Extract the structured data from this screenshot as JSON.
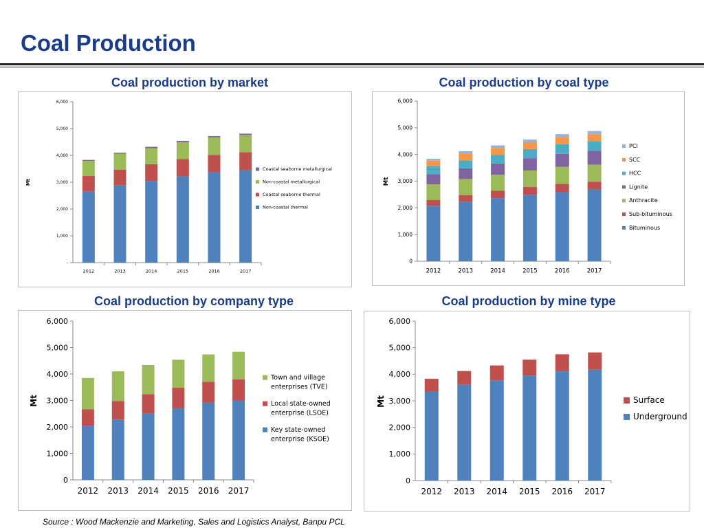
{
  "page": {
    "title": "Coal Production",
    "source": "Source : Wood Mackenzie and Marketing, Sales and Logistics Analyst, Banpu PCL"
  },
  "chart_data": [
    {
      "id": "market",
      "type": "bar",
      "stacked": true,
      "title": "Coal production by market",
      "ylabel": "Mt",
      "categories": [
        "2012",
        "2013",
        "2014",
        "2015",
        "2016",
        "2017"
      ],
      "ylim": [
        0,
        6000
      ],
      "yticks": [
        0,
        1000,
        2000,
        3000,
        4000,
        5000,
        6000
      ],
      "ytick_labels": [
        "-",
        "1,000",
        "2,000",
        "3,000",
        "4,000",
        "5,000",
        "6,000"
      ],
      "series": [
        {
          "name": "Non-coastal thermal",
          "color": "#4f81bd",
          "values": [
            2650,
            2880,
            3050,
            3220,
            3370,
            3450
          ]
        },
        {
          "name": "Coastal seaborne thermal",
          "color": "#c0504d",
          "values": [
            580,
            590,
            620,
            640,
            650,
            670
          ]
        },
        {
          "name": "Non-coastal metallurgical",
          "color": "#9bbb59",
          "values": [
            560,
            590,
            600,
            630,
            650,
            640
          ]
        },
        {
          "name": "Coastal seaborne metallurgical",
          "color": "#8064a2",
          "values": [
            40,
            40,
            50,
            50,
            50,
            50
          ]
        }
      ],
      "legend": "right"
    },
    {
      "id": "coaltype",
      "type": "bar",
      "stacked": true,
      "title": "Coal production by coal type",
      "ylabel": "Mt",
      "categories": [
        "2012",
        "2013",
        "2014",
        "2015",
        "2016",
        "2017"
      ],
      "ylim": [
        0,
        6000
      ],
      "yticks": [
        0,
        1000,
        2000,
        3000,
        4000,
        5000,
        6000
      ],
      "ytick_labels": [
        "0",
        "1,000",
        "2,000",
        "3,000",
        "4,000",
        "5,000",
        "6,000"
      ],
      "series": [
        {
          "name": "Bituminous",
          "color": "#4f81bd",
          "values": [
            2080,
            2220,
            2360,
            2480,
            2600,
            2680
          ]
        },
        {
          "name": "Sub-bituminous",
          "color": "#c0504d",
          "values": [
            220,
            260,
            280,
            300,
            300,
            300
          ]
        },
        {
          "name": "Anthracite",
          "color": "#9bbb59",
          "values": [
            580,
            600,
            600,
            620,
            640,
            640
          ]
        },
        {
          "name": "Lignite",
          "color": "#8064a2",
          "values": [
            380,
            400,
            420,
            460,
            480,
            520
          ]
        },
        {
          "name": "HCC",
          "color": "#4bacc6",
          "values": [
            300,
            300,
            320,
            340,
            360,
            360
          ]
        },
        {
          "name": "SCC",
          "color": "#f79646",
          "values": [
            220,
            240,
            260,
            260,
            260,
            260
          ]
        },
        {
          "name": "PCI",
          "color": "#95b3d7",
          "values": [
            60,
            100,
            100,
            100,
            120,
            120
          ]
        }
      ],
      "legend": "right"
    },
    {
      "id": "company",
      "type": "bar",
      "stacked": true,
      "title": "Coal production by company type",
      "ylabel": "Mt",
      "categories": [
        "2012",
        "2013",
        "2014",
        "2015",
        "2016",
        "2017"
      ],
      "ylim": [
        0,
        6000
      ],
      "yticks": [
        0,
        1000,
        2000,
        3000,
        4000,
        5000,
        6000
      ],
      "ytick_labels": [
        "0",
        "1,000",
        "2,000",
        "3,000",
        "4,000",
        "5,000",
        "6,000"
      ],
      "series": [
        {
          "name": "Key state-owned enterprise (KSOE)",
          "color": "#4f81bd",
          "values": [
            2050,
            2280,
            2500,
            2700,
            2920,
            3000
          ]
        },
        {
          "name": "Local state-owned enterprise (LSOE)",
          "color": "#c0504d",
          "values": [
            620,
            700,
            740,
            780,
            780,
            800
          ]
        },
        {
          "name": "Town and village enterprises (TVE)",
          "color": "#9bbb59",
          "values": [
            1180,
            1120,
            1100,
            1060,
            1040,
            1040
          ]
        }
      ],
      "legend": "right"
    },
    {
      "id": "mine",
      "type": "bar",
      "stacked": true,
      "title": "Coal production by mine type",
      "ylabel": "Mt",
      "categories": [
        "2012",
        "2013",
        "2014",
        "2015",
        "2016",
        "2017"
      ],
      "ylim": [
        0,
        6000
      ],
      "yticks": [
        0,
        1000,
        2000,
        3000,
        4000,
        5000,
        6000
      ],
      "ytick_labels": [
        "0",
        "1,000",
        "2,000",
        "3,000",
        "4,000",
        "5,000",
        "6,000"
      ],
      "series": [
        {
          "name": "Underground",
          "color": "#4f81bd",
          "values": [
            3350,
            3600,
            3770,
            3950,
            4110,
            4170
          ]
        },
        {
          "name": "Surface",
          "color": "#c0504d",
          "values": [
            480,
            520,
            560,
            600,
            640,
            650
          ]
        }
      ],
      "legend": "right"
    }
  ]
}
